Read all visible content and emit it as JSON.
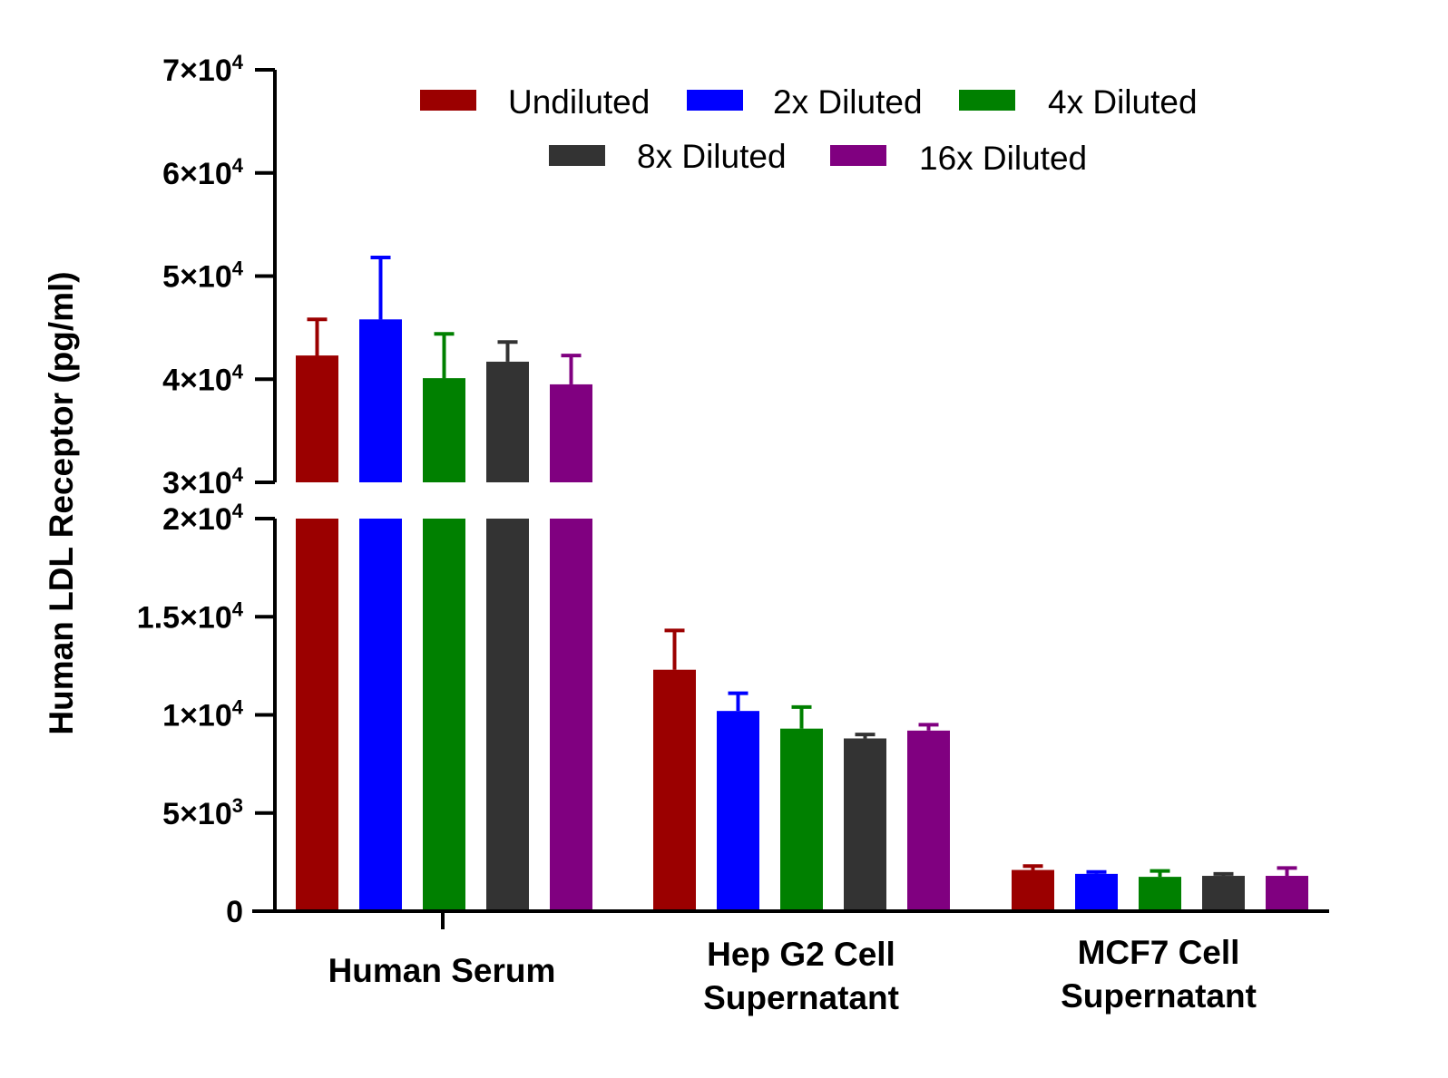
{
  "chart_data": {
    "type": "bar",
    "ylabel": "Human LDL Receptor (pg/ml)",
    "categories": [
      "Human Serum",
      "Hep G2 Cell Supernatant",
      "MCF7 Cell Supernatant"
    ],
    "category_labels": [
      [
        "Human Serum"
      ],
      [
        "Hep G2 Cell",
        "Supernatant"
      ],
      [
        "MCF7 Cell",
        "Supernatant"
      ]
    ],
    "series": [
      {
        "name": "Undiluted",
        "color": "#9b0000",
        "values": [
          42300,
          12300,
          2100
        ],
        "errors": [
          3500,
          2000,
          200
        ]
      },
      {
        "name": "2x Diluted",
        "color": "#0000ff",
        "values": [
          45800,
          10200,
          1900
        ],
        "errors": [
          6000,
          900,
          100
        ]
      },
      {
        "name": "4x Diluted",
        "color": "#008000",
        "values": [
          40100,
          9300,
          1750
        ],
        "errors": [
          4300,
          1100,
          300
        ]
      },
      {
        "name": "8x Diluted",
        "color": "#333333",
        "values": [
          41700,
          8800,
          1800
        ],
        "errors": [
          1900,
          200,
          100
        ]
      },
      {
        "name": "16x Diluted",
        "color": "#800080",
        "values": [
          39500,
          9200,
          1800
        ],
        "errors": [
          2800,
          300,
          400
        ]
      }
    ],
    "y_axis": {
      "broken": true,
      "lower_segment": [
        0,
        20000
      ],
      "upper_segment": [
        30000,
        70000
      ],
      "ticks": [
        {
          "value": 0,
          "mantissa": "0",
          "exponent": ""
        },
        {
          "value": 5000,
          "mantissa": "5×10",
          "exponent": "3"
        },
        {
          "value": 10000,
          "mantissa": "1×10",
          "exponent": "4"
        },
        {
          "value": 15000,
          "mantissa": "1.5×10",
          "exponent": "4"
        },
        {
          "value": 20000,
          "mantissa": "2×10",
          "exponent": "4"
        },
        {
          "value": 30000,
          "mantissa": "3×10",
          "exponent": "4"
        },
        {
          "value": 40000,
          "mantissa": "4×10",
          "exponent": "4"
        },
        {
          "value": 50000,
          "mantissa": "5×10",
          "exponent": "4"
        },
        {
          "value": 60000,
          "mantissa": "6×10",
          "exponent": "4"
        },
        {
          "value": 70000,
          "mantissa": "7×10",
          "exponent": "4"
        }
      ]
    },
    "legend_position": "top"
  }
}
